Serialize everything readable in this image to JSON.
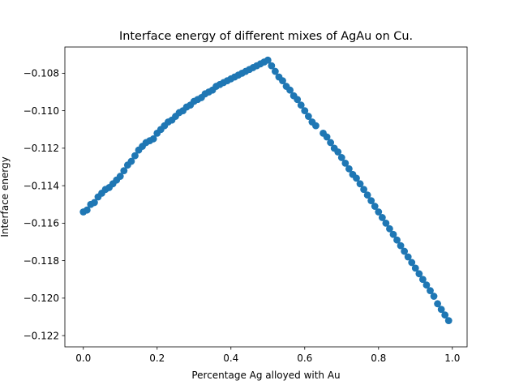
{
  "chart_data": {
    "type": "scatter",
    "title": "Interface energy of different mixes of AgAu on Cu.",
    "xlabel": "Percentage Ag alloyed with Au",
    "ylabel": "Interface energy",
    "xlim": [
      -0.05,
      1.04
    ],
    "ylim": [
      -0.1226,
      -0.1066
    ],
    "grid": false,
    "legend": "none",
    "marker_color": "#1f77b4",
    "x_ticks": [
      {
        "value": 0.0,
        "label": "0.0"
      },
      {
        "value": 0.2,
        "label": "0.2"
      },
      {
        "value": 0.4,
        "label": "0.4"
      },
      {
        "value": 0.6,
        "label": "0.6"
      },
      {
        "value": 0.8,
        "label": "0.8"
      },
      {
        "value": 1.0,
        "label": "1.0"
      }
    ],
    "y_ticks": [
      {
        "value": -0.108,
        "label": "−0.108"
      },
      {
        "value": -0.11,
        "label": "−0.110"
      },
      {
        "value": -0.112,
        "label": "−0.112"
      },
      {
        "value": -0.114,
        "label": "−0.114"
      },
      {
        "value": -0.116,
        "label": "−0.116"
      },
      {
        "value": -0.118,
        "label": "−0.118"
      },
      {
        "value": -0.12,
        "label": "−0.120"
      },
      {
        "value": -0.122,
        "label": "−0.122"
      }
    ],
    "series": [
      {
        "points": [
          [
            0.0,
            -0.1154
          ],
          [
            0.01,
            -0.1153
          ],
          [
            0.02,
            -0.115
          ],
          [
            0.03,
            -0.1149
          ],
          [
            0.04,
            -0.1146
          ],
          [
            0.05,
            -0.1144
          ],
          [
            0.06,
            -0.1142
          ],
          [
            0.07,
            -0.1141
          ],
          [
            0.08,
            -0.1139
          ],
          [
            0.09,
            -0.1137
          ],
          [
            0.1,
            -0.1135
          ],
          [
            0.11,
            -0.1132
          ],
          [
            0.12,
            -0.1129
          ],
          [
            0.13,
            -0.1127
          ],
          [
            0.14,
            -0.1124
          ],
          [
            0.15,
            -0.1121
          ],
          [
            0.16,
            -0.1119
          ],
          [
            0.17,
            -0.1117
          ],
          [
            0.18,
            -0.1116
          ],
          [
            0.19,
            -0.1115
          ],
          [
            0.2,
            -0.1112
          ],
          [
            0.21,
            -0.111
          ],
          [
            0.22,
            -0.1108
          ],
          [
            0.23,
            -0.1106
          ],
          [
            0.24,
            -0.1105
          ],
          [
            0.25,
            -0.1103
          ],
          [
            0.26,
            -0.1101
          ],
          [
            0.27,
            -0.11
          ],
          [
            0.28,
            -0.1098
          ],
          [
            0.29,
            -0.1097
          ],
          [
            0.3,
            -0.1095
          ],
          [
            0.31,
            -0.1094
          ],
          [
            0.32,
            -0.1093
          ],
          [
            0.33,
            -0.1091
          ],
          [
            0.34,
            -0.109
          ],
          [
            0.35,
            -0.1089
          ],
          [
            0.36,
            -0.1087
          ],
          [
            0.37,
            -0.1086
          ],
          [
            0.38,
            -0.1085
          ],
          [
            0.39,
            -0.1084
          ],
          [
            0.4,
            -0.1083
          ],
          [
            0.41,
            -0.1082
          ],
          [
            0.42,
            -0.1081
          ],
          [
            0.43,
            -0.108
          ],
          [
            0.44,
            -0.1079
          ],
          [
            0.45,
            -0.1078
          ],
          [
            0.46,
            -0.1077
          ],
          [
            0.47,
            -0.1076
          ],
          [
            0.48,
            -0.1075
          ],
          [
            0.49,
            -0.1074
          ],
          [
            0.5,
            -0.1073
          ],
          [
            0.51,
            -0.1076
          ],
          [
            0.52,
            -0.1079
          ],
          [
            0.53,
            -0.1082
          ],
          [
            0.54,
            -0.1084
          ],
          [
            0.55,
            -0.1087
          ],
          [
            0.56,
            -0.1089
          ],
          [
            0.57,
            -0.1092
          ],
          [
            0.58,
            -0.1094
          ],
          [
            0.59,
            -0.1097
          ],
          [
            0.6,
            -0.11
          ],
          [
            0.61,
            -0.1103
          ],
          [
            0.62,
            -0.1106
          ],
          [
            0.63,
            -0.1108
          ],
          [
            0.65,
            -0.1112
          ],
          [
            0.66,
            -0.1114
          ],
          [
            0.67,
            -0.1117
          ],
          [
            0.68,
            -0.112
          ],
          [
            0.69,
            -0.1122
          ],
          [
            0.7,
            -0.1125
          ],
          [
            0.71,
            -0.1128
          ],
          [
            0.72,
            -0.1131
          ],
          [
            0.73,
            -0.1134
          ],
          [
            0.74,
            -0.1136
          ],
          [
            0.75,
            -0.1139
          ],
          [
            0.76,
            -0.1142
          ],
          [
            0.77,
            -0.1145
          ],
          [
            0.78,
            -0.1148
          ],
          [
            0.79,
            -0.1151
          ],
          [
            0.8,
            -0.1154
          ],
          [
            0.81,
            -0.1157
          ],
          [
            0.82,
            -0.116
          ],
          [
            0.83,
            -0.1163
          ],
          [
            0.84,
            -0.1166
          ],
          [
            0.85,
            -0.1169
          ],
          [
            0.86,
            -0.1172
          ],
          [
            0.87,
            -0.1175
          ],
          [
            0.88,
            -0.1178
          ],
          [
            0.89,
            -0.1181
          ],
          [
            0.9,
            -0.1184
          ],
          [
            0.91,
            -0.1187
          ],
          [
            0.92,
            -0.119
          ],
          [
            0.93,
            -0.1193
          ],
          [
            0.94,
            -0.1196
          ],
          [
            0.95,
            -0.1199
          ],
          [
            0.96,
            -0.1203
          ],
          [
            0.97,
            -0.1206
          ],
          [
            0.98,
            -0.1209
          ],
          [
            0.99,
            -0.1212
          ]
        ]
      }
    ]
  }
}
